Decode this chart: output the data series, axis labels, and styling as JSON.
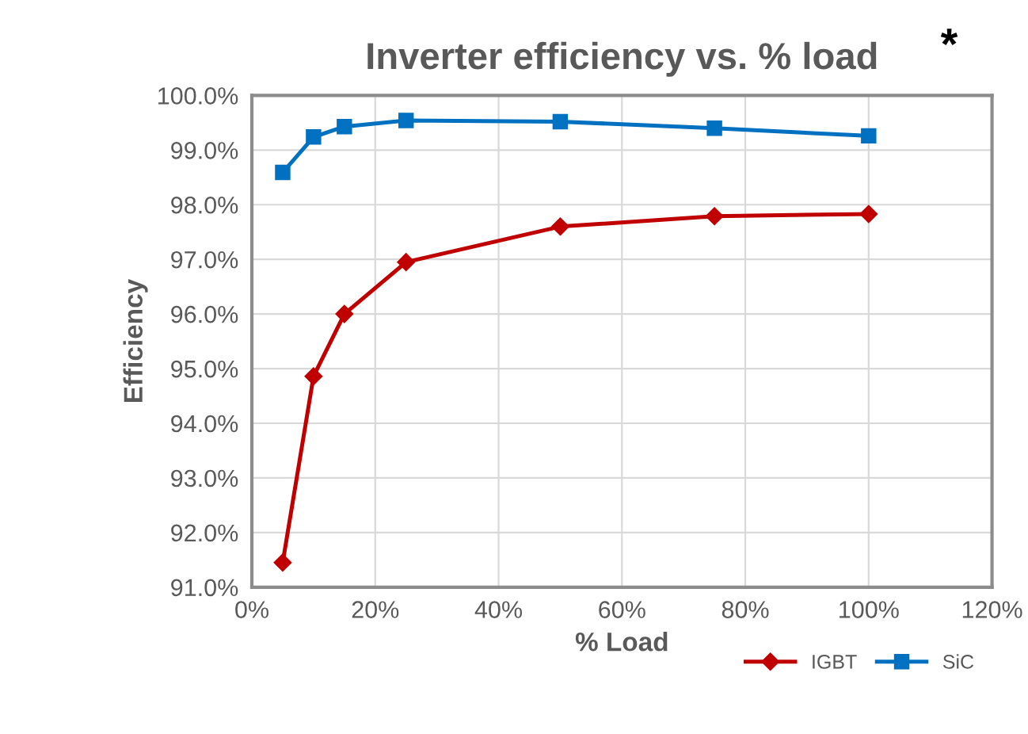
{
  "chart_data": {
    "type": "line",
    "title": "Inverter efficiency vs. % load",
    "annotations": [
      "*"
    ],
    "xlabel": "% Load",
    "ylabel": "Efficiency",
    "x": [
      5,
      10,
      15,
      25,
      50,
      75,
      100
    ],
    "series": [
      {
        "name": "IGBT",
        "color": "#c00000",
        "marker": "diamond",
        "values": [
          91.45,
          94.86,
          96.0,
          96.95,
          97.6,
          97.79,
          97.83
        ]
      },
      {
        "name": "SiC",
        "color": "#0070c0",
        "marker": "square",
        "values": [
          98.59,
          99.24,
          99.43,
          99.54,
          99.52,
          99.4,
          99.26
        ]
      }
    ],
    "xlim": [
      0,
      120
    ],
    "xticks": [
      {
        "value": 0,
        "label": "0%"
      },
      {
        "value": 20,
        "label": "20%"
      },
      {
        "value": 40,
        "label": "40%"
      },
      {
        "value": 60,
        "label": "60%"
      },
      {
        "value": 80,
        "label": "80%"
      },
      {
        "value": 100,
        "label": "100%"
      },
      {
        "value": 120,
        "label": "120%"
      }
    ],
    "ylim": [
      91,
      100
    ],
    "yticks": [
      {
        "value": 91,
        "label": "91.0%"
      },
      {
        "value": 92,
        "label": "92.0%"
      },
      {
        "value": 93,
        "label": "93.0%"
      },
      {
        "value": 94,
        "label": "94.0%"
      },
      {
        "value": 95,
        "label": "95.0%"
      },
      {
        "value": 96,
        "label": "96.0%"
      },
      {
        "value": 97,
        "label": "97.0%"
      },
      {
        "value": 98,
        "label": "98.0%"
      },
      {
        "value": 99,
        "label": "99.0%"
      },
      {
        "value": 100,
        "label": "100.0%"
      }
    ],
    "grid": true,
    "legend": "bottom right",
    "line_style": "solid"
  }
}
